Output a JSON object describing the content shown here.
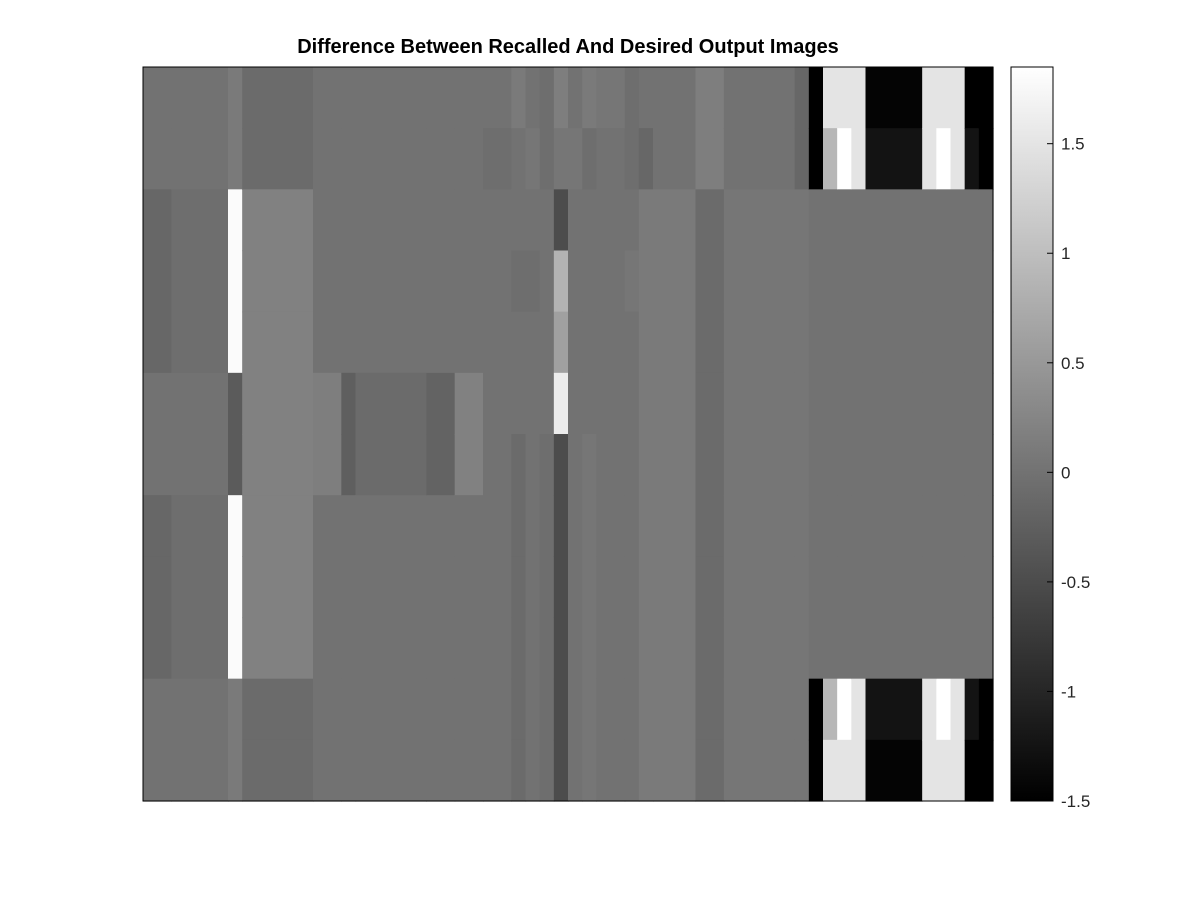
{
  "chart_data": {
    "type": "heatmap",
    "title": "Difference Between Recalled And Desired Output Images",
    "xlabel": "",
    "ylabel": "",
    "colormap": "gray",
    "clim": [
      -1.5,
      1.85
    ],
    "colorbar": {
      "ticks": [
        1.5,
        1,
        0.5,
        0,
        -0.5,
        -1,
        -1.5
      ],
      "tick_labels": [
        "1.5",
        "1",
        "0.5",
        "0",
        "-0.5",
        "-1",
        "-1.5"
      ]
    },
    "n_rows": 12,
    "n_cols": 60,
    "column_bands": [
      {
        "cols": [
          0,
          1
        ],
        "values": [
          0.0,
          0.0,
          -0.15,
          -0.15,
          -0.15,
          0.0,
          0.0,
          -0.15,
          -0.15,
          -0.15,
          0.0,
          0.0
        ]
      },
      {
        "cols": [
          2,
          5
        ],
        "values": [
          0.0,
          0.0,
          -0.05,
          -0.05,
          -0.05,
          0.0,
          0.0,
          -0.05,
          -0.05,
          -0.05,
          0.0,
          0.0
        ]
      },
      {
        "cols": [
          6,
          6
        ],
        "values": [
          0.1,
          0.1,
          1.8,
          1.8,
          1.8,
          -0.3,
          -0.3,
          1.8,
          1.8,
          1.8,
          0.1,
          0.1
        ]
      },
      {
        "cols": [
          7,
          11
        ],
        "values": [
          -0.1,
          -0.1,
          0.2,
          0.2,
          0.2,
          0.2,
          0.2,
          0.2,
          0.2,
          0.2,
          -0.1,
          -0.1
        ]
      },
      {
        "cols": [
          12,
          13
        ],
        "values": [
          0.0,
          0.0,
          0.0,
          0.0,
          0.0,
          0.15,
          0.15,
          0.0,
          0.0,
          0.0,
          0.0,
          0.0
        ]
      },
      {
        "cols": [
          14,
          14
        ],
        "values": [
          0.0,
          0.0,
          0.0,
          0.0,
          0.0,
          -0.25,
          -0.25,
          0.0,
          0.0,
          0.0,
          0.0,
          0.0
        ]
      },
      {
        "cols": [
          15,
          19
        ],
        "values": [
          0.0,
          0.0,
          0.0,
          0.0,
          0.0,
          -0.1,
          -0.1,
          0.0,
          0.0,
          0.0,
          0.0,
          0.0
        ]
      },
      {
        "cols": [
          20,
          21
        ],
        "values": [
          0.0,
          0.0,
          0.0,
          0.0,
          0.0,
          -0.2,
          -0.2,
          0.0,
          0.0,
          0.0,
          0.0,
          0.0
        ]
      },
      {
        "cols": [
          22,
          23
        ],
        "values": [
          0.0,
          0.0,
          0.0,
          0.0,
          0.0,
          0.2,
          0.2,
          0.0,
          0.0,
          0.0,
          0.0,
          0.0
        ]
      },
      {
        "cols": [
          24,
          25
        ],
        "values": [
          0.0,
          -0.05,
          0.0,
          0.0,
          0.0,
          0.0,
          0.0,
          0.0,
          0.0,
          0.0,
          0.0,
          0.0
        ]
      },
      {
        "cols": [
          26,
          26
        ],
        "values": [
          0.1,
          0.0,
          0.0,
          -0.05,
          0.0,
          0.0,
          -0.1,
          -0.1,
          -0.1,
          -0.1,
          -0.1,
          -0.1
        ]
      },
      {
        "cols": [
          27,
          27
        ],
        "values": [
          0.0,
          0.05,
          0.0,
          -0.05,
          0.0,
          0.0,
          0.0,
          0.0,
          0.0,
          0.0,
          0.0,
          0.0
        ]
      },
      {
        "cols": [
          28,
          28
        ],
        "values": [
          -0.05,
          -0.05,
          0.0,
          0.0,
          0.0,
          0.0,
          -0.05,
          -0.05,
          -0.05,
          -0.05,
          -0.05,
          -0.05
        ]
      },
      {
        "cols": [
          29,
          29
        ],
        "values": [
          0.15,
          0.05,
          -0.5,
          0.85,
          0.6,
          1.6,
          -0.5,
          -0.5,
          -0.5,
          -0.5,
          -0.5,
          -0.5
        ]
      },
      {
        "cols": [
          30,
          30
        ],
        "values": [
          0.0,
          0.05,
          0.0,
          0.0,
          0.0,
          0.0,
          0.0,
          0.0,
          0.0,
          0.0,
          0.0,
          0.0
        ]
      },
      {
        "cols": [
          31,
          31
        ],
        "values": [
          0.1,
          -0.05,
          0.0,
          0.0,
          0.0,
          0.0,
          0.05,
          0.05,
          0.05,
          0.05,
          0.05,
          0.05
        ]
      },
      {
        "cols": [
          32,
          33
        ],
        "values": [
          0.05,
          0.0,
          0.0,
          0.0,
          0.0,
          0.0,
          0.0,
          0.0,
          0.0,
          0.0,
          0.0,
          0.0
        ]
      },
      {
        "cols": [
          34,
          34
        ],
        "values": [
          -0.05,
          -0.05,
          0.0,
          0.05,
          0.0,
          0.0,
          0.0,
          0.0,
          0.0,
          0.0,
          0.0,
          0.0
        ]
      },
      {
        "cols": [
          35,
          35
        ],
        "values": [
          0.0,
          -0.15,
          0.1,
          0.1,
          0.1,
          0.1,
          0.1,
          0.1,
          0.1,
          0.1,
          0.1,
          0.1
        ]
      },
      {
        "cols": [
          36,
          38
        ],
        "values": [
          0.0,
          0.0,
          0.1,
          0.1,
          0.1,
          0.1,
          0.1,
          0.1,
          0.1,
          0.1,
          0.1,
          0.1
        ]
      },
      {
        "cols": [
          39,
          40
        ],
        "values": [
          0.15,
          0.15,
          -0.1,
          -0.1,
          -0.1,
          -0.1,
          -0.1,
          -0.1,
          -0.1,
          -0.1,
          -0.1,
          -0.1
        ]
      },
      {
        "cols": [
          41,
          45
        ],
        "values": [
          0.0,
          0.0,
          0.05,
          0.05,
          0.05,
          0.05,
          0.05,
          0.05,
          0.05,
          0.05,
          0.05,
          0.05
        ]
      },
      {
        "cols": [
          46,
          46
        ],
        "values": [
          -0.15,
          -0.15,
          0.05,
          0.05,
          0.05,
          0.05,
          0.05,
          0.05,
          0.05,
          0.05,
          0.05,
          0.05
        ]
      },
      {
        "cols": [
          47,
          47
        ],
        "values": [
          -1.5,
          -1.5,
          0.0,
          0.0,
          0.0,
          0.0,
          0.0,
          0.0,
          0.0,
          0.0,
          -1.5,
          -1.5
        ]
      },
      {
        "cols": [
          48,
          48
        ],
        "values": [
          1.5,
          0.9,
          0.0,
          0.0,
          0.0,
          0.0,
          0.0,
          0.0,
          0.0,
          0.0,
          0.9,
          1.5
        ]
      },
      {
        "cols": [
          49,
          49
        ],
        "values": [
          1.5,
          1.85,
          0.0,
          0.0,
          0.0,
          0.0,
          0.0,
          0.0,
          0.0,
          0.0,
          1.85,
          1.5
        ]
      },
      {
        "cols": [
          50,
          50
        ],
        "values": [
          1.5,
          1.5,
          0.0,
          0.0,
          0.0,
          0.0,
          0.0,
          0.0,
          0.0,
          0.0,
          1.5,
          1.5
        ]
      },
      {
        "cols": [
          51,
          54
        ],
        "values": [
          -1.45,
          -1.25,
          0.0,
          0.0,
          0.0,
          0.0,
          0.0,
          0.0,
          0.0,
          0.0,
          -1.25,
          -1.45
        ]
      },
      {
        "cols": [
          55,
          55
        ],
        "values": [
          1.5,
          1.5,
          0.0,
          0.0,
          0.0,
          0.0,
          0.0,
          0.0,
          0.0,
          0.0,
          1.5,
          1.5
        ]
      },
      {
        "cols": [
          56,
          56
        ],
        "values": [
          1.5,
          1.85,
          0.0,
          0.0,
          0.0,
          0.0,
          0.0,
          0.0,
          0.0,
          0.0,
          1.85,
          1.5
        ]
      },
      {
        "cols": [
          57,
          57
        ],
        "values": [
          1.5,
          1.5,
          0.0,
          0.0,
          0.0,
          0.0,
          0.0,
          0.0,
          0.0,
          0.0,
          1.5,
          1.5
        ]
      },
      {
        "cols": [
          58,
          58
        ],
        "values": [
          -1.5,
          -1.25,
          0.0,
          0.0,
          0.0,
          0.0,
          0.0,
          0.0,
          0.0,
          0.0,
          -1.25,
          -1.5
        ]
      },
      {
        "cols": [
          59,
          59
        ],
        "values": [
          -1.5,
          -1.5,
          0.0,
          0.0,
          0.0,
          0.0,
          0.0,
          0.0,
          0.0,
          0.0,
          -1.5,
          -1.5
        ]
      }
    ]
  }
}
